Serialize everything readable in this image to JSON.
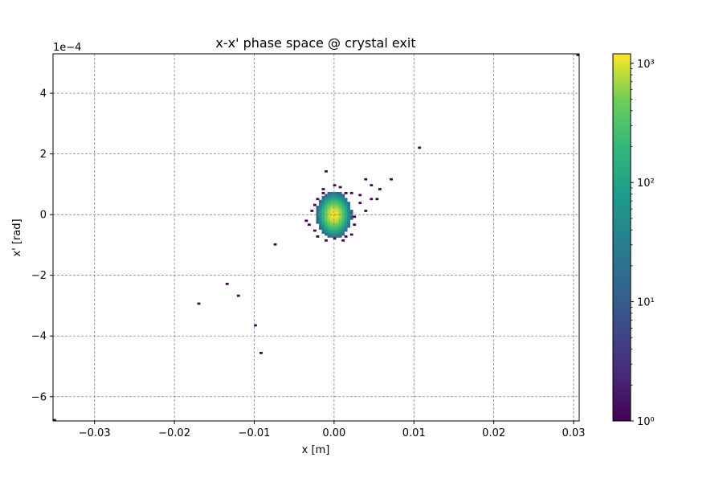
{
  "chart_data": {
    "type": "heatmap",
    "title": "x-x' phase space @ crystal exit",
    "xlabel": "x [m]",
    "ylabel": "x' [rad]",
    "y_offset_label": "1e−4",
    "xlim": [
      -0.0352,
      0.0307
    ],
    "ylim": [
      -6.8,
      5.3
    ],
    "x_ticks": [
      -0.03,
      -0.02,
      -0.01,
      0.0,
      0.01,
      0.02,
      0.03
    ],
    "x_tick_labels": [
      "−0.03",
      "−0.02",
      "−0.01",
      "0.00",
      "0.01",
      "0.02",
      "0.03"
    ],
    "y_ticks": [
      -6,
      -4,
      -2,
      0,
      2,
      4
    ],
    "y_tick_labels": [
      "−6",
      "−4",
      "−2",
      "0",
      "2",
      "4"
    ],
    "grid": true,
    "colormap": "viridis",
    "colorbar": {
      "scale": "log",
      "range": [
        1,
        1200
      ],
      "ticks": [
        1,
        10,
        100,
        1000
      ],
      "tick_labels": [
        "10⁰",
        "10¹",
        "10²",
        "10³"
      ]
    },
    "core": {
      "center_x": 0.0,
      "center_y": 0.0,
      "sigma_x": 0.00072,
      "sigma_y": 0.25,
      "peak_count": 1200
    },
    "outliers": [
      {
        "x": -0.0352,
        "y": -6.8,
        "count": 1
      },
      {
        "x": 0.0305,
        "y": 5.3,
        "count": 1
      },
      {
        "x": 0.0106,
        "y": 2.2,
        "count": 1
      },
      {
        "x": 0.007,
        "y": 1.2,
        "count": 1
      },
      {
        "x": 0.0057,
        "y": 0.85,
        "count": 1
      },
      {
        "x": 0.0047,
        "y": 0.98,
        "count": 1
      },
      {
        "x": 0.004,
        "y": 1.15,
        "count": 1
      },
      {
        "x": 0.0052,
        "y": 0.55,
        "count": 1
      },
      {
        "x": 0.0047,
        "y": 0.5,
        "count": 1
      },
      {
        "x": 0.0033,
        "y": 0.65,
        "count": 1
      },
      {
        "x": 0.0034,
        "y": 0.42,
        "count": 1
      },
      {
        "x": 0.004,
        "y": 0.15,
        "count": 1
      },
      {
        "x": 0.0027,
        "y": -0.05,
        "count": 1
      },
      {
        "x": 0.0024,
        "y": -0.3,
        "count": 1
      },
      {
        "x": 0.0022,
        "y": -0.68,
        "count": 1
      },
      {
        "x": 0.0015,
        "y": -0.75,
        "count": 1
      },
      {
        "x": 0.001,
        "y": -0.85,
        "count": 1
      },
      {
        "x": 0.0001,
        "y": -0.78,
        "count": 1
      },
      {
        "x": -0.0009,
        "y": -0.82,
        "count": 1
      },
      {
        "x": -0.0022,
        "y": -0.75,
        "count": 1
      },
      {
        "x": -0.0023,
        "y": -0.5,
        "count": 1
      },
      {
        "x": -0.0032,
        "y": -0.3,
        "count": 1
      },
      {
        "x": -0.0035,
        "y": -0.2,
        "count": 1
      },
      {
        "x": -0.0028,
        "y": 0.1,
        "count": 1
      },
      {
        "x": -0.0025,
        "y": 0.3,
        "count": 1
      },
      {
        "x": -0.002,
        "y": 0.5,
        "count": 1
      },
      {
        "x": -0.0014,
        "y": 0.7,
        "count": 1
      },
      {
        "x": -0.0012,
        "y": 0.85,
        "count": 1
      },
      {
        "x": -0.001,
        "y": 1.45,
        "count": 1
      },
      {
        "x": -0.0001,
        "y": 0.95,
        "count": 1
      },
      {
        "x": 0.0007,
        "y": 0.88,
        "count": 1
      },
      {
        "x": 0.0013,
        "y": 0.7,
        "count": 1
      },
      {
        "x": 0.0023,
        "y": 0.7,
        "count": 1
      },
      {
        "x": -0.0073,
        "y": -0.95,
        "count": 1
      },
      {
        "x": -0.0133,
        "y": -2.28,
        "count": 1
      },
      {
        "x": -0.0121,
        "y": -2.7,
        "count": 1
      },
      {
        "x": -0.0169,
        "y": -2.95,
        "count": 1
      },
      {
        "x": -0.0097,
        "y": -3.62,
        "count": 1
      },
      {
        "x": -0.009,
        "y": -4.58,
        "count": 1
      }
    ]
  }
}
